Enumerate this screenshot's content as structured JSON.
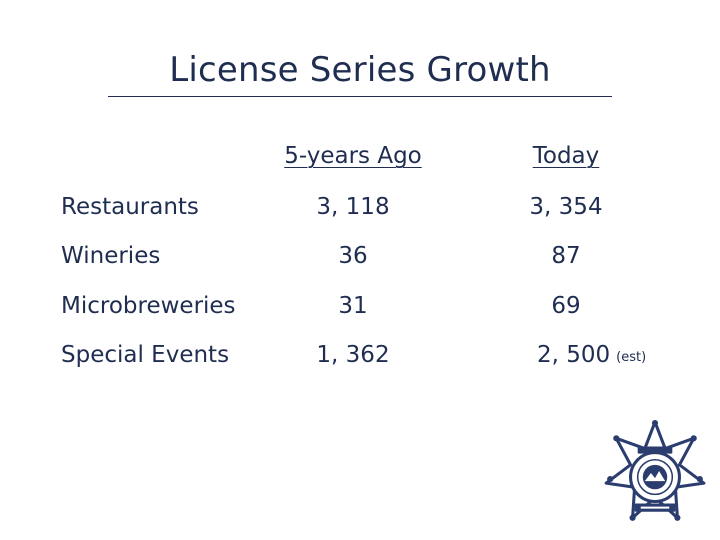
{
  "title": "License Series Growth",
  "columns": [
    "5-years Ago",
    "Today"
  ],
  "rows": [
    {
      "label": "Restaurants",
      "ago": "3, 118",
      "today": "3, 354",
      "note": ""
    },
    {
      "label": "Wineries",
      "ago": "36",
      "today": "87",
      "note": ""
    },
    {
      "label": "Microbreweries",
      "ago": "31",
      "today": "69",
      "note": ""
    },
    {
      "label": "Special Events",
      "ago": "1, 362",
      "today": "2, 500",
      "note": "(est)"
    }
  ],
  "colors": {
    "text": "#1f2d50",
    "badge": "#2b3c6e"
  },
  "badge_icon": "sheriff-star-badge-icon"
}
